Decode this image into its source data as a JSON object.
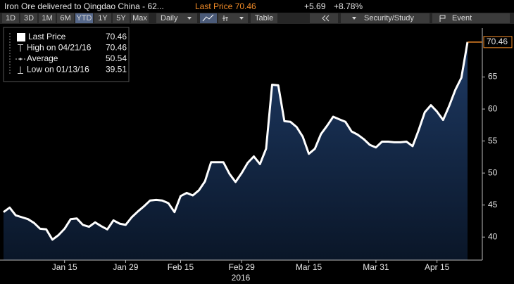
{
  "header": {
    "title": "Iron Ore delivered to Qingdao China - 62...",
    "last_price": "Last Price 70.46",
    "change": "+5.69",
    "change_pct": "+8.78%"
  },
  "toolbar": {
    "ranges": [
      "1D",
      "3D",
      "1M",
      "6M",
      "YTD",
      "1Y",
      "5Y",
      "Max"
    ],
    "active_range": 4,
    "frequency": "Daily",
    "table": "Table",
    "security": "Security/Study",
    "event": "Event"
  },
  "chart_data": {
    "type": "area",
    "categories": [
      null,
      null,
      null,
      null,
      null,
      null,
      null,
      null,
      null,
      null,
      "Jan 15",
      null,
      null,
      null,
      null,
      null,
      null,
      null,
      null,
      null,
      "Jan 29",
      null,
      null,
      null,
      null,
      null,
      null,
      null,
      null,
      "Feb 15",
      null,
      null,
      null,
      null,
      null,
      null,
      null,
      null,
      null,
      "Feb 29",
      null,
      null,
      null,
      null,
      null,
      null,
      null,
      null,
      null,
      null,
      "Mar 15",
      null,
      null,
      null,
      null,
      null,
      null,
      null,
      null,
      null,
      null,
      "Mar 31",
      null,
      null,
      null,
      null,
      null,
      null,
      null,
      null,
      null,
      "Apr 15",
      null,
      null,
      null,
      null,
      null
    ],
    "year_label": "2016",
    "series": [
      {
        "name": "Last Price",
        "color": "#ffffff",
        "fill_top": "#1e3a64",
        "fill_bottom": "#0a1628",
        "values": [
          43.9,
          44.6,
          43.4,
          43.1,
          42.8,
          42.2,
          41.3,
          41.2,
          39.6,
          40.3,
          41.3,
          42.8,
          42.9,
          41.9,
          41.6,
          42.3,
          41.7,
          41.2,
          42.6,
          42.1,
          41.9,
          43.1,
          44.0,
          44.8,
          45.7,
          45.8,
          45.7,
          45.3,
          43.9,
          46.4,
          46.9,
          46.5,
          47.3,
          48.7,
          51.7,
          51.7,
          51.7,
          49.9,
          48.6,
          50.0,
          51.6,
          52.6,
          51.4,
          53.8,
          63.8,
          63.7,
          58.1,
          58.0,
          57.2,
          55.7,
          53.0,
          53.8,
          56.1,
          57.4,
          58.8,
          58.4,
          58.0,
          56.5,
          56.0,
          55.3,
          54.4,
          54.0,
          54.9,
          54.9,
          54.8,
          54.8,
          54.9,
          54.2,
          56.7,
          59.5,
          60.6,
          59.6,
          58.3,
          60.5,
          63.0,
          64.9,
          70.46
        ]
      }
    ],
    "last_value_color": "#f28c28",
    "legend": {
      "position": "upper left",
      "entries": [
        {
          "label": "Last Price",
          "value": 70.46
        },
        {
          "label": "High on 04/21/16",
          "value": 70.46
        },
        {
          "label": "Average",
          "value": 50.54
        },
        {
          "label": "Low on 01/13/16",
          "value": 39.51
        }
      ]
    },
    "ylim": [
      36.4,
      72.2
    ],
    "yticks": [
      40,
      45,
      50,
      55,
      60,
      65
    ],
    "y_axis_side": "right",
    "grid": false
  }
}
